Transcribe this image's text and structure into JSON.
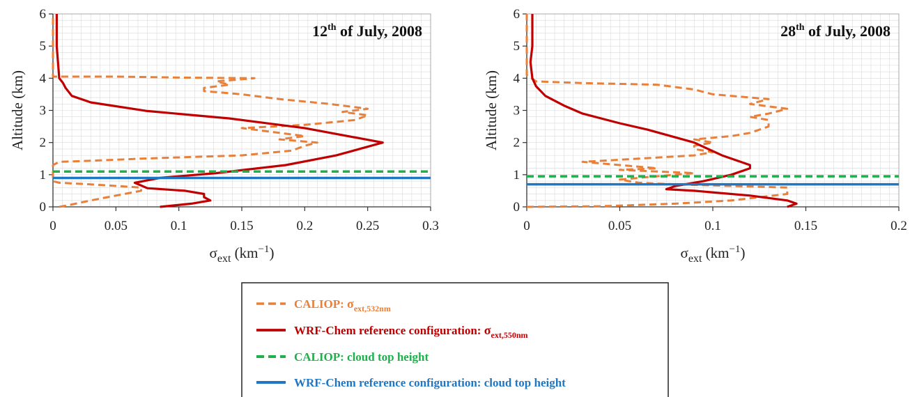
{
  "colors": {
    "caliop_ext": "#E8803A",
    "wrf_ext": "#C00000",
    "caliop_cth": "#1EB04B",
    "wrf_cth": "#1F77C4",
    "grid": "#D9D9D9",
    "axis": "#333333"
  },
  "chart_data": [
    {
      "type": "line",
      "title_pre": "12",
      "title_sup": "th",
      "title_post": " of July, 2008",
      "ylabel": "Altitude (km)",
      "xlabel_main": "σ",
      "xlabel_sub": "ext",
      "xlabel_unit": " (km",
      "xlabel_exp": "−1",
      "xlabel_close": ")",
      "xlim": [
        0,
        0.3
      ],
      "ylim": [
        0,
        6
      ],
      "xticks": [
        0,
        0.05,
        0.1,
        0.15,
        0.2,
        0.25,
        0.3
      ],
      "xtick_labels": [
        "0",
        "0.05",
        "0.1",
        "0.15",
        "0.2",
        "0.25",
        "0.3"
      ],
      "yticks": [
        0,
        1,
        2,
        3,
        4,
        5,
        6
      ],
      "ytick_labels": [
        "0",
        "1",
        "2",
        "3",
        "4",
        "5",
        "6"
      ],
      "series": [
        {
          "key": "caliop_ext",
          "points": [
            [
              0.005,
              0
            ],
            [
              0.012,
              0.05
            ],
            [
              0.03,
              0.2
            ],
            [
              0.05,
              0.35
            ],
            [
              0.07,
              0.5
            ],
            [
              0.07,
              0.6
            ],
            [
              0.03,
              0.7
            ],
            [
              0.005,
              0.75
            ],
            [
              0,
              0.8
            ],
            [
              0,
              1.3
            ],
            [
              0.005,
              1.4
            ],
            [
              0.04,
              1.45
            ],
            [
              0.07,
              1.5
            ],
            [
              0.11,
              1.55
            ],
            [
              0.15,
              1.6
            ],
            [
              0.19,
              1.75
            ],
            [
              0.2,
              1.9
            ],
            [
              0.21,
              2.0
            ],
            [
              0.18,
              2.1
            ],
            [
              0.2,
              2.2
            ],
            [
              0.18,
              2.3
            ],
            [
              0.15,
              2.45
            ],
            [
              0.2,
              2.55
            ],
            [
              0.24,
              2.7
            ],
            [
              0.25,
              2.85
            ],
            [
              0.23,
              2.95
            ],
            [
              0.25,
              3.05
            ],
            [
              0.22,
              3.2
            ],
            [
              0.18,
              3.35
            ],
            [
              0.15,
              3.5
            ],
            [
              0.12,
              3.6
            ],
            [
              0.12,
              3.7
            ],
            [
              0.14,
              3.8
            ],
            [
              0.13,
              3.9
            ],
            [
              0.16,
              4.0
            ],
            [
              0.1,
              4.02
            ],
            [
              0.05,
              4.05
            ],
            [
              0,
              4.05
            ],
            [
              0,
              4.2
            ],
            [
              0,
              5.0
            ],
            [
              0,
              6
            ]
          ]
        },
        {
          "key": "wrf_ext",
          "points": [
            [
              0.085,
              0
            ],
            [
              0.11,
              0.1
            ],
            [
              0.125,
              0.2
            ],
            [
              0.12,
              0.3
            ],
            [
              0.12,
              0.4
            ],
            [
              0.105,
              0.5
            ],
            [
              0.075,
              0.58
            ],
            [
              0.065,
              0.75
            ],
            [
              0.085,
              0.9
            ],
            [
              0.13,
              1.05
            ],
            [
              0.185,
              1.3
            ],
            [
              0.225,
              1.6
            ],
            [
              0.262,
              2.0
            ],
            [
              0.2,
              2.45
            ],
            [
              0.14,
              2.75
            ],
            [
              0.075,
              2.98
            ],
            [
              0.03,
              3.25
            ],
            [
              0.015,
              3.45
            ],
            [
              0.01,
              3.7
            ],
            [
              0.008,
              3.85
            ],
            [
              0.005,
              4.0
            ],
            [
              0.004,
              4.5
            ],
            [
              0.003,
              5.0
            ],
            [
              0.003,
              6
            ]
          ]
        },
        {
          "key": "caliop_cth",
          "y": 1.1
        },
        {
          "key": "wrf_cth",
          "y": 0.9
        }
      ]
    },
    {
      "type": "line",
      "title_pre": "28",
      "title_sup": "th",
      "title_post": " of July, 2008",
      "ylabel": "Altitude (km)",
      "xlabel_main": "σ",
      "xlabel_sub": "ext",
      "xlabel_unit": " (km",
      "xlabel_exp": "−1",
      "xlabel_close": ")",
      "xlim": [
        0,
        0.2
      ],
      "ylim": [
        0,
        6
      ],
      "xticks": [
        0,
        0.05,
        0.1,
        0.15,
        0.2
      ],
      "xtick_labels": [
        "0",
        "0.05",
        "0.1",
        "0.15",
        "0.2"
      ],
      "yticks": [
        0,
        1,
        2,
        3,
        4,
        5,
        6
      ],
      "ytick_labels": [
        "0",
        "1",
        "2",
        "3",
        "4",
        "5",
        "6"
      ],
      "series": [
        {
          "key": "caliop_ext",
          "points": [
            [
              0,
              0
            ],
            [
              0.04,
              0.02
            ],
            [
              0.08,
              0.1
            ],
            [
              0.11,
              0.2
            ],
            [
              0.14,
              0.4
            ],
            [
              0.14,
              0.6
            ],
            [
              0.11,
              0.65
            ],
            [
              0.08,
              0.7
            ],
            [
              0.06,
              0.75
            ],
            [
              0.05,
              0.85
            ],
            [
              0.07,
              0.95
            ],
            [
              0.09,
              1.05
            ],
            [
              0.05,
              1.15
            ],
            [
              0.07,
              1.2
            ],
            [
              0.05,
              1.3
            ],
            [
              0.03,
              1.4
            ],
            [
              0.06,
              1.5
            ],
            [
              0.09,
              1.6
            ],
            [
              0.1,
              1.7
            ],
            [
              0.09,
              1.8
            ],
            [
              0.09,
              1.9
            ],
            [
              0.1,
              2.0
            ],
            [
              0.09,
              2.1
            ],
            [
              0.11,
              2.2
            ],
            [
              0.12,
              2.3
            ],
            [
              0.13,
              2.5
            ],
            [
              0.13,
              2.7
            ],
            [
              0.12,
              2.8
            ],
            [
              0.13,
              2.9
            ],
            [
              0.14,
              3.05
            ],
            [
              0.12,
              3.2
            ],
            [
              0.13,
              3.35
            ],
            [
              0.1,
              3.5
            ],
            [
              0.09,
              3.65
            ],
            [
              0.07,
              3.8
            ],
            [
              0.03,
              3.85
            ],
            [
              0.005,
              3.9
            ],
            [
              0,
              4.1
            ],
            [
              0,
              5.0
            ],
            [
              0,
              6
            ]
          ]
        },
        {
          "key": "wrf_ext",
          "points": [
            [
              0.14,
              0
            ],
            [
              0.145,
              0.1
            ],
            [
              0.14,
              0.2
            ],
            [
              0.12,
              0.35
            ],
            [
              0.09,
              0.5
            ],
            [
              0.075,
              0.55
            ],
            [
              0.08,
              0.65
            ],
            [
              0.095,
              0.8
            ],
            [
              0.11,
              1.0
            ],
            [
              0.12,
              1.2
            ],
            [
              0.12,
              1.3
            ],
            [
              0.105,
              1.6
            ],
            [
              0.09,
              2.0
            ],
            [
              0.065,
              2.4
            ],
            [
              0.05,
              2.6
            ],
            [
              0.03,
              2.9
            ],
            [
              0.02,
              3.15
            ],
            [
              0.01,
              3.45
            ],
            [
              0.005,
              3.75
            ],
            [
              0.003,
              4.0
            ],
            [
              0.002,
              4.5
            ],
            [
              0.003,
              5.0
            ],
            [
              0.003,
              6
            ]
          ]
        },
        {
          "key": "caliop_cth",
          "y": 0.95
        },
        {
          "key": "wrf_cth",
          "y": 0.7
        }
      ]
    }
  ],
  "legend": {
    "items": [
      {
        "key": "caliop_ext",
        "label": "CALIOP: ",
        "sym": "σ",
        "sub": "ext,532nm",
        "dashed": true
      },
      {
        "key": "wrf_ext",
        "label": "WRF-Chem reference configuration: ",
        "sym": "σ",
        "sub": "ext,550nm",
        "dashed": false
      },
      {
        "key": "caliop_cth",
        "label": "CALIOP: cloud top height",
        "sym": "",
        "sub": "",
        "dashed": true
      },
      {
        "key": "wrf_cth",
        "label": "WRF-Chem reference configuration: cloud top height",
        "sym": "",
        "sub": "",
        "dashed": false
      }
    ]
  }
}
